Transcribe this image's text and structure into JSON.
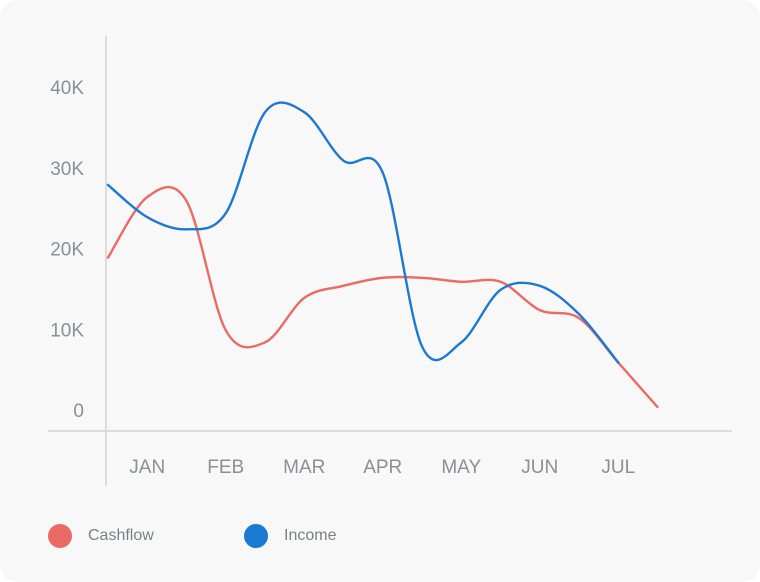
{
  "chart_data": {
    "type": "line",
    "categories": [
      "JAN",
      "FEB",
      "MAR",
      "APR",
      "MAY",
      "JUN",
      "JUL"
    ],
    "x": [
      0,
      0.5,
      1,
      1.5,
      2,
      2.5,
      3,
      3.5,
      4,
      4.5,
      5,
      5.5,
      6,
      6.5,
      7,
      7.5
    ],
    "yticks": [
      "0",
      "10K",
      "20K",
      "30K",
      "40K"
    ],
    "ylim": [
      0,
      40000
    ],
    "grid": false,
    "legend_position": "bottom-left",
    "series": [
      {
        "name": "Cashflow",
        "color": "#ea6a66",
        "values": [
          19000,
          26500,
          26000,
          10000,
          8500,
          14000,
          15500,
          16500,
          16500,
          16000,
          16000,
          12500,
          11500,
          6000,
          500,
          null
        ]
      },
      {
        "name": "Income",
        "color": "#1c79d3",
        "values": [
          28000,
          24000,
          22500,
          24500,
          37000,
          37000,
          31000,
          29500,
          8000,
          8500,
          15000,
          15500,
          12000,
          6000,
          null,
          null
        ]
      }
    ]
  },
  "legend": {
    "items": [
      {
        "label": "Cashflow",
        "color": "#ea6a66"
      },
      {
        "label": "Income",
        "color": "#1c79d3"
      }
    ]
  }
}
